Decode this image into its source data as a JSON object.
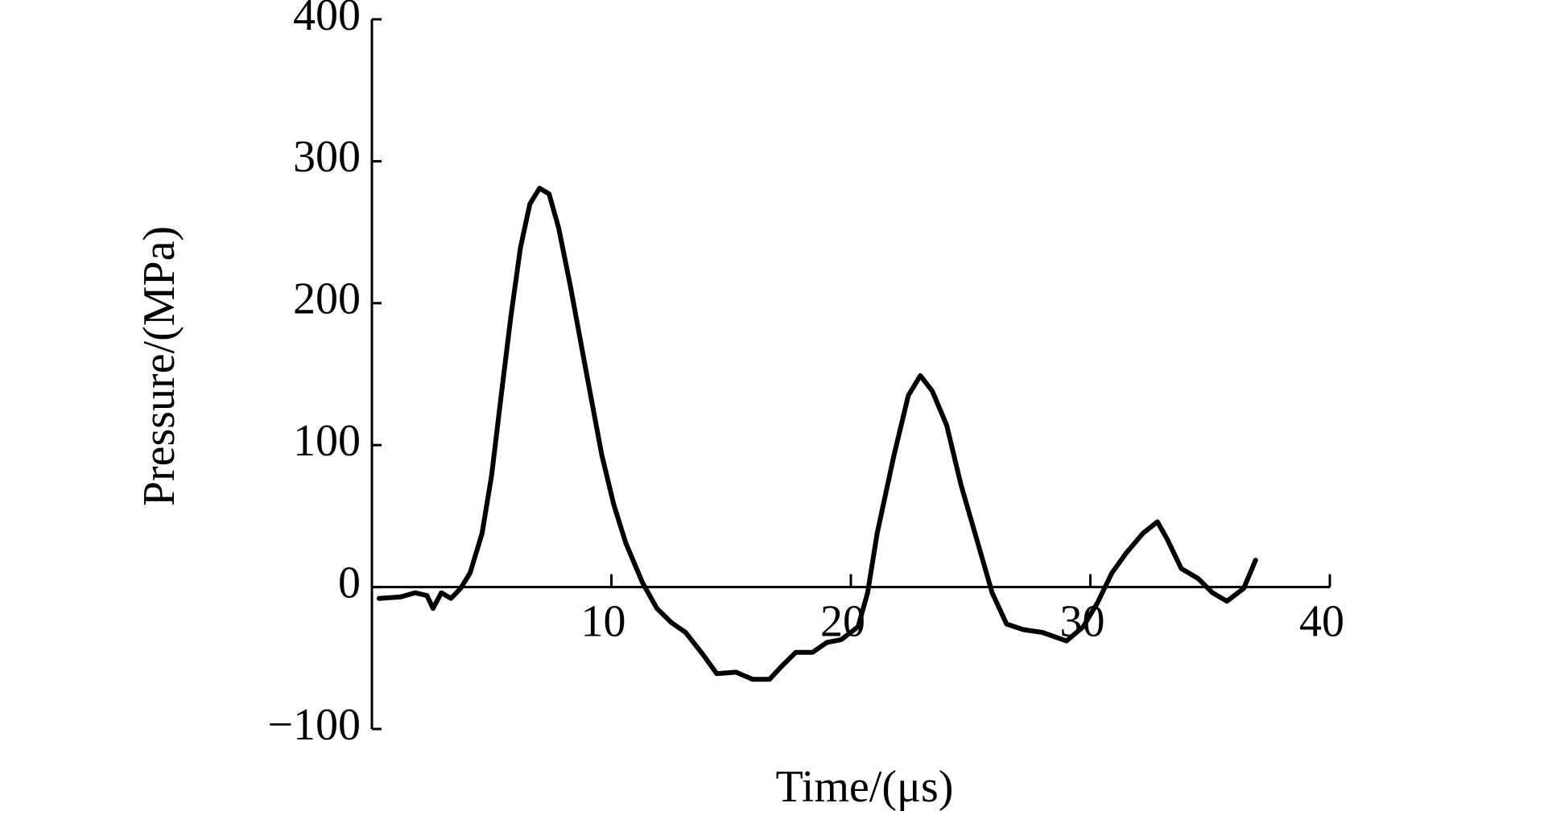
{
  "chart_data": {
    "type": "line",
    "x_label": "Time/(μs)",
    "y_label": "Pressure/(MPa)",
    "xlim": [
      0,
      40
    ],
    "xticks": [
      10,
      20,
      30,
      40
    ],
    "ylim": [
      -100,
      400
    ],
    "yticks": [
      {
        "value": -100,
        "label": "−100"
      },
      0,
      100,
      200,
      300,
      400
    ],
    "series": [
      {
        "color": "#000000",
        "x": [
          0.3,
          1.2,
          1.8,
          2.3,
          2.55,
          2.9,
          3.3,
          3.7,
          4.1,
          4.6,
          5.0,
          5.4,
          5.8,
          6.2,
          6.6,
          7.0,
          7.4,
          7.8,
          8.3,
          8.9,
          9.6,
          10.1,
          10.6,
          11.3,
          11.9,
          12.5,
          13.1,
          13.8,
          14.4,
          15.2,
          15.9,
          16.6,
          17.1,
          17.7,
          18.4,
          19.0,
          19.6,
          20.3,
          20.7,
          21.1,
          21.8,
          22.4,
          22.9,
          23.4,
          24.0,
          24.6,
          25.3,
          25.9,
          26.5,
          27.2,
          28.0,
          29.0,
          29.7,
          30.3,
          30.9,
          31.5,
          32.2,
          32.8,
          33.2,
          33.8,
          34.5,
          35.1,
          35.7,
          36.4,
          36.9
        ],
        "values": [
          -8,
          -7,
          -4,
          -6,
          -15,
          -4,
          -8,
          -1,
          10,
          38,
          79,
          135,
          190,
          239,
          270,
          281,
          277,
          253,
          211,
          156,
          93,
          58,
          31,
          3,
          -15,
          -25,
          -32,
          -47,
          -61,
          -60,
          -65,
          -65,
          -56,
          -46,
          -46,
          -39,
          -37,
          -28,
          -4,
          38,
          93,
          135,
          149,
          138,
          114,
          72,
          31,
          -4,
          -26,
          -30,
          -32,
          -38,
          -28,
          -11,
          10,
          24,
          38,
          46,
          34,
          13,
          6,
          -4,
          -10,
          -1,
          19
        ]
      }
    ]
  }
}
